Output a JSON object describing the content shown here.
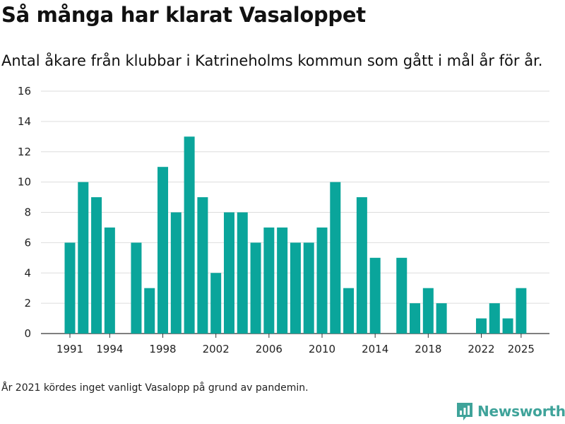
{
  "header": {
    "title": "Så många har klarat Vasaloppet",
    "subtitle": "Antal åkare från klubbar i Katrineholms kommun som gått i mål år för år."
  },
  "footnote": "År 2021 kördes inget vanligt Vasalopp på grund av pandemin.",
  "brand": {
    "name": "Newsworthy",
    "logo_icon": "newsworthy-logo-icon"
  },
  "colors": {
    "bar": "#0aa59b",
    "grid": "#dddddd",
    "axis": "#333333",
    "brand": "#3fa39a"
  },
  "chart_data": {
    "type": "bar",
    "title": "Så många har klarat Vasaloppet",
    "subtitle": "Antal åkare från klubbar i Katrineholms kommun som gått i mål år för år.",
    "xlabel": "",
    "ylabel": "",
    "ylim": [
      0,
      16
    ],
    "y_ticks": [
      0,
      2,
      4,
      6,
      8,
      10,
      12,
      14,
      16
    ],
    "x_tick_labels": [
      1991,
      1994,
      1998,
      2002,
      2006,
      2010,
      2014,
      2018,
      2022,
      2025
    ],
    "grid": true,
    "x": [
      1991,
      1992,
      1993,
      1994,
      1995,
      1996,
      1997,
      1998,
      1999,
      2000,
      2001,
      2002,
      2003,
      2004,
      2005,
      2006,
      2007,
      2008,
      2009,
      2010,
      2011,
      2012,
      2013,
      2014,
      2015,
      2016,
      2017,
      2018,
      2019,
      2020,
      2021,
      2022,
      2023,
      2024,
      2025
    ],
    "values": [
      6,
      10,
      9,
      7,
      0,
      6,
      3,
      11,
      8,
      13,
      9,
      4,
      8,
      8,
      6,
      7,
      7,
      6,
      6,
      7,
      10,
      3,
      9,
      5,
      0,
      5,
      2,
      3,
      2,
      0,
      0,
      1,
      2,
      1,
      3
    ]
  }
}
